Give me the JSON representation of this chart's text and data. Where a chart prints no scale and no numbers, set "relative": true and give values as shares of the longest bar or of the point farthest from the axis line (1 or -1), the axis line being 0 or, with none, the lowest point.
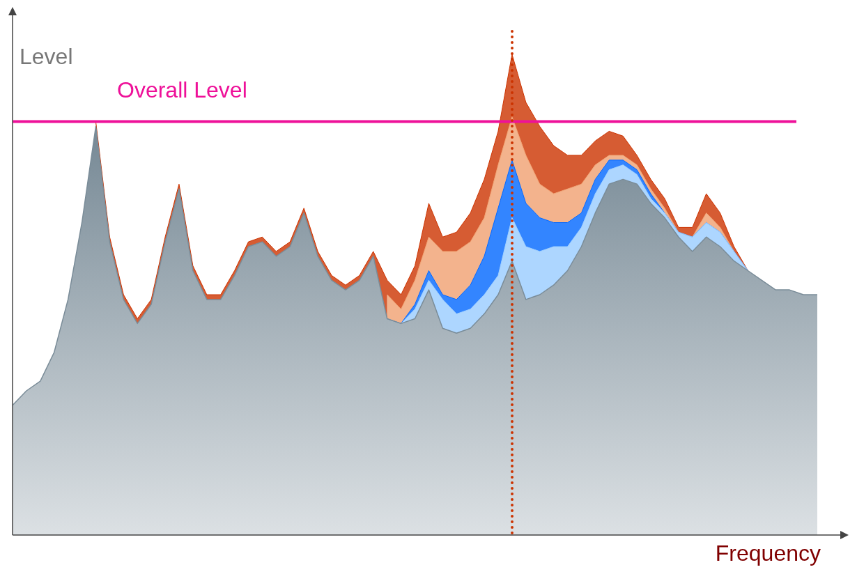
{
  "chart_data": {
    "type": "area",
    "stacked": true,
    "relative": true,
    "xlabel": "Frequency",
    "ylabel": "Level",
    "marker": "none",
    "categories": [
      null,
      null,
      null,
      null,
      null,
      null,
      null,
      null,
      null,
      null,
      null,
      null,
      null,
      null,
      null,
      null,
      null,
      null,
      null,
      null,
      null,
      null,
      null,
      null,
      null,
      null,
      null,
      null,
      null,
      null,
      null,
      null,
      null,
      null,
      null,
      null,
      null,
      null,
      null,
      null,
      null,
      null,
      null,
      null,
      null,
      null,
      null,
      null,
      null,
      null,
      null,
      null,
      null,
      null,
      null,
      null,
      null,
      null,
      null
    ],
    "series": [
      {
        "color": "#7a8c98",
        "values": [
          0.27,
          0.3,
          0.32,
          0.38,
          0.49,
          0.65,
          0.85,
          0.61,
          0.49,
          0.44,
          0.48,
          0.61,
          0.72,
          0.55,
          0.49,
          0.49,
          0.54,
          0.6,
          0.61,
          0.58,
          0.6,
          0.67,
          0.58,
          0.53,
          0.51,
          0.53,
          0.58,
          0.45,
          0.44,
          0.45,
          0.51,
          0.43,
          0.42,
          0.43,
          0.46,
          0.5,
          0.57,
          0.49,
          0.5,
          0.52,
          0.55,
          0.6,
          0.67,
          0.73,
          0.74,
          0.73,
          0.69,
          0.66,
          0.62,
          0.59,
          0.62,
          0.6,
          0.57,
          0.55,
          0.53,
          0.51,
          0.51,
          0.5,
          0.5
        ]
      },
      {
        "color": "#99ccff",
        "values": [
          null,
          null,
          null,
          null,
          null,
          null,
          null,
          null,
          null,
          null,
          null,
          null,
          null,
          null,
          null,
          null,
          null,
          null,
          null,
          null,
          null,
          null,
          null,
          null,
          null,
          null,
          null,
          0,
          0,
          0.02,
          0.02,
          0.06,
          0.04,
          0.04,
          0.04,
          0.04,
          0.09,
          0.11,
          0.09,
          0.08,
          0.05,
          0.04,
          0.04,
          0.03,
          0.03,
          0.02,
          0.01,
          0.01,
          0.01,
          0.03,
          0.03,
          0.03,
          0.02,
          0,
          null,
          null,
          null,
          null,
          null
        ]
      },
      {
        "color": "#0066ff",
        "values": [
          null,
          null,
          null,
          null,
          null,
          null,
          null,
          null,
          null,
          null,
          null,
          null,
          null,
          null,
          null,
          null,
          null,
          null,
          null,
          null,
          null,
          null,
          null,
          null,
          null,
          null,
          null,
          0,
          0,
          0.01,
          0.02,
          0.01,
          0.03,
          0.05,
          0.08,
          0.14,
          0.12,
          0.09,
          0.07,
          0.05,
          0.05,
          0.03,
          0.03,
          0.02,
          0.01,
          0.01,
          0.01,
          0,
          0,
          0,
          0,
          0,
          0,
          0,
          null,
          null,
          null,
          null,
          null
        ]
      },
      {
        "color": "#f0a070",
        "values": [
          null,
          null,
          null,
          null,
          null,
          null,
          null,
          null,
          null,
          null,
          null,
          null,
          null,
          null,
          null,
          null,
          null,
          null,
          null,
          null,
          null,
          null,
          null,
          null,
          null,
          null,
          null,
          0.05,
          0.03,
          0.05,
          0.07,
          0.09,
          0.1,
          0.09,
          0.08,
          0.09,
          0.09,
          0.1,
          0.07,
          0.06,
          0.07,
          0.06,
          0.03,
          0.01,
          0.01,
          0.01,
          0.01,
          0.01,
          0,
          0,
          0.02,
          0.01,
          0,
          0,
          null,
          null,
          null,
          null,
          null
        ]
      },
      {
        "color": "#cc3300",
        "values": [
          null,
          null,
          null,
          null,
          null,
          null,
          0.01,
          0.01,
          0.01,
          0.01,
          0.01,
          0.01,
          0.01,
          0.01,
          0.01,
          0.01,
          0.01,
          0.01,
          0.01,
          0.01,
          0.01,
          0.01,
          0.01,
          0.01,
          0.01,
          0.01,
          0.01,
          0.03,
          0.03,
          0.03,
          0.07,
          0.03,
          0.04,
          0.06,
          0.08,
          0.07,
          0.13,
          0.11,
          0.12,
          0.1,
          0.07,
          0.06,
          0.05,
          0.05,
          0.04,
          0.02,
          0.02,
          0.02,
          0.01,
          0.02,
          0.04,
          0.03,
          0.01,
          0,
          null,
          null,
          null,
          null,
          null
        ]
      }
    ],
    "ref_lines": [
      {
        "axis": "y",
        "value": 0.86,
        "label": "Overall Level",
        "color": "#ee1199",
        "line_style": "solid"
      }
    ]
  }
}
